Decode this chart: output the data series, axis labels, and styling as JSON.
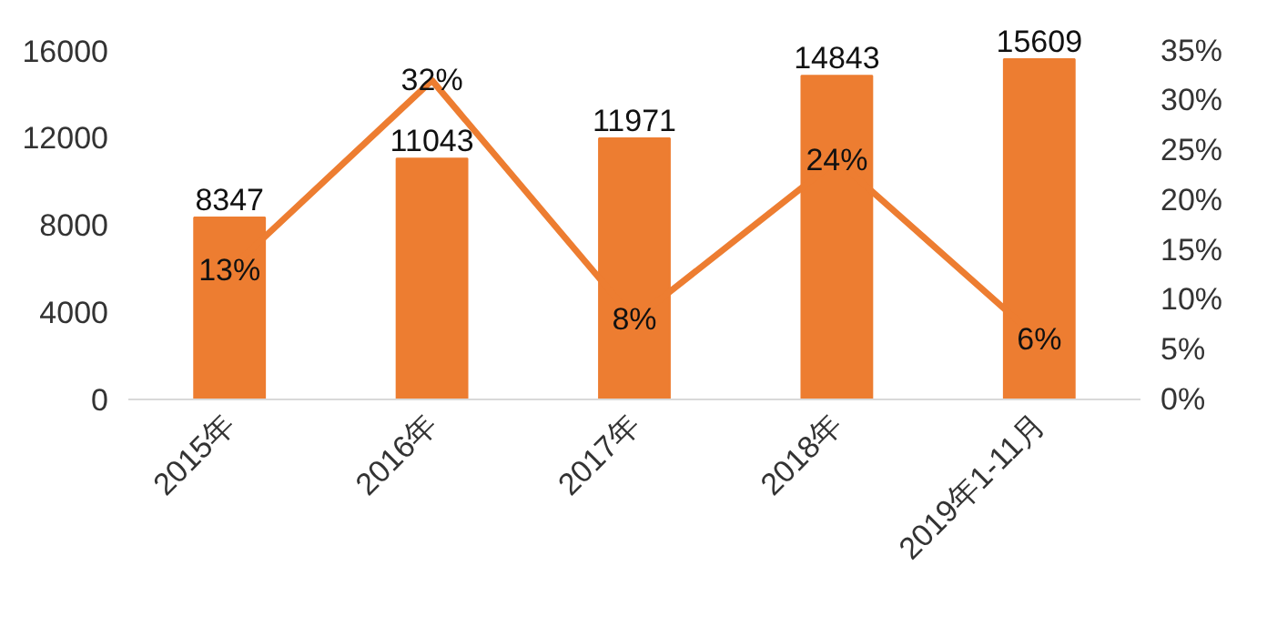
{
  "chart_data": {
    "type": "bar",
    "categories": [
      "2015年",
      "2016年",
      "2017年",
      "2018年",
      "2019年1-11月"
    ],
    "series": [
      {
        "color": "#ed7d31",
        "values": [
          8347,
          11043,
          11971,
          14843,
          15609
        ],
        "data_labels": true
      },
      {
        "type": "line",
        "axis": "y2",
        "color": "#ed7d31",
        "values": [
          13,
          32,
          8,
          24,
          6
        ],
        "value_labels": [
          "13%",
          "32%",
          "8%",
          "24%",
          "6%"
        ]
      }
    ],
    "ylim": [
      0,
      16000
    ],
    "yticks": [
      0,
      4000,
      8000,
      12000,
      16000
    ],
    "y2lim": [
      0,
      35
    ],
    "y2ticks": [
      {
        "value": 0,
        "label": "0%"
      },
      {
        "value": 5,
        "label": "5%"
      },
      {
        "value": 10,
        "label": "10%"
      },
      {
        "value": 15,
        "label": "15%"
      },
      {
        "value": 20,
        "label": "20%"
      },
      {
        "value": 25,
        "label": "25%"
      },
      {
        "value": 30,
        "label": "30%"
      },
      {
        "value": 35,
        "label": "35%"
      }
    ],
    "grid": false
  }
}
